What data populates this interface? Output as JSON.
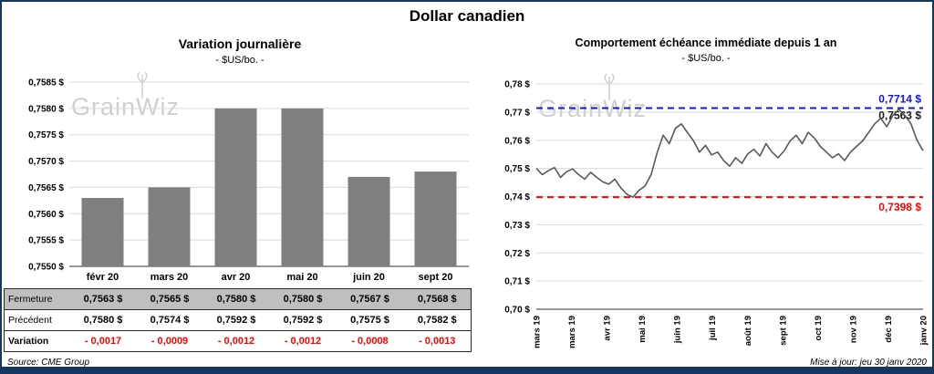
{
  "title": "Dollar canadien",
  "watermark": "GrainWiz",
  "left_chart": {
    "title": "Variation  journalière",
    "subtitle": "- $US/bo. -",
    "source": "Source: CME Group"
  },
  "right_chart": {
    "title": "Comportement échéance immédiate depuis 1 an",
    "subtitle": "- $US/bo. -",
    "updated": "Mise à jour: jeu 30 janv 2020"
  },
  "table": {
    "rows": [
      {
        "label": "Fermeture",
        "values": [
          "0,7563  $",
          "0,7565  $",
          "0,7580  $",
          "0,7580  $",
          "0,7567  $",
          "0,7568  $"
        ]
      },
      {
        "label": "Précédent",
        "values": [
          "0,7580  $",
          "0,7574  $",
          "0,7592  $",
          "0,7592  $",
          "0,7575  $",
          "0,7582  $"
        ]
      },
      {
        "label": "Variation",
        "values": [
          "- 0,0017",
          "- 0,0009",
          "- 0,0012",
          "- 0,0012",
          "- 0,0008",
          "- 0,0013"
        ]
      }
    ]
  },
  "chart_data": [
    {
      "type": "bar",
      "title": "Variation journalière",
      "subtitle": "- $US/bo. -",
      "categories": [
        "févr 20",
        "mars 20",
        "avr 20",
        "mai 20",
        "juin 20",
        "sept 20"
      ],
      "values": [
        0.7563,
        0.7565,
        0.758,
        0.758,
        0.7567,
        0.7568
      ],
      "xlabel": "",
      "ylabel": "$US/bo.",
      "ylim": [
        0.755,
        0.7585
      ],
      "ytick_step": 0.0005,
      "ytick_labels": [
        "0,7550 $",
        "0,7555 $",
        "0,7560 $",
        "0,7565 $",
        "0,7570 $",
        "0,7575 $",
        "0,7580 $",
        "0,7585 $"
      ],
      "bar_color": "#7F7F7F",
      "grid": true,
      "legend": false
    },
    {
      "type": "line",
      "title": "Comportement échéance immédiate depuis 1 an",
      "subtitle": "- $US/bo. -",
      "x_tick_labels": [
        "mars 19",
        "mars 19",
        "avr 19",
        "mai 19",
        "juin 19",
        "juil 19",
        "août 19",
        "sept 19",
        "oct 19",
        "nov 19",
        "déc 19",
        "janv 20"
      ],
      "values": [
        0.75,
        0.7478,
        0.7492,
        0.7503,
        0.7468,
        0.7488,
        0.7498,
        0.7478,
        0.7462,
        0.7486,
        0.7468,
        0.7452,
        0.7444,
        0.7462,
        0.743,
        0.7408,
        0.7398,
        0.7422,
        0.7438,
        0.7478,
        0.7556,
        0.7618,
        0.7588,
        0.7642,
        0.7658,
        0.7628,
        0.7598,
        0.7558,
        0.7582,
        0.7548,
        0.7558,
        0.7528,
        0.7508,
        0.7538,
        0.7518,
        0.7552,
        0.7568,
        0.7544,
        0.7588,
        0.7558,
        0.7538,
        0.7562,
        0.7598,
        0.7618,
        0.7588,
        0.7628,
        0.7608,
        0.7578,
        0.7558,
        0.7538,
        0.7552,
        0.7528,
        0.7558,
        0.7578,
        0.7598,
        0.7628,
        0.7658,
        0.7678,
        0.7648,
        0.7688,
        0.771,
        0.7688,
        0.7658,
        0.76,
        0.7563
      ],
      "ylim": [
        0.7,
        0.78
      ],
      "ytick_step": 0.01,
      "ytick_labels": [
        "0,70 $",
        "0,71 $",
        "0,72 $",
        "0,73 $",
        "0,74 $",
        "0,75 $",
        "0,76 $",
        "0,77 $",
        "0,78 $"
      ],
      "high": {
        "value": 0.7714,
        "label": "0,7714 $",
        "color": "#1414E6"
      },
      "low": {
        "value": 0.7398,
        "label": "0,7398 $",
        "color": "#FF0000"
      },
      "last": {
        "value": 0.7563,
        "label": "0,7563 $",
        "color": "#1A1A1A"
      },
      "line_color": "#595959",
      "grid": true,
      "legend": false
    }
  ]
}
